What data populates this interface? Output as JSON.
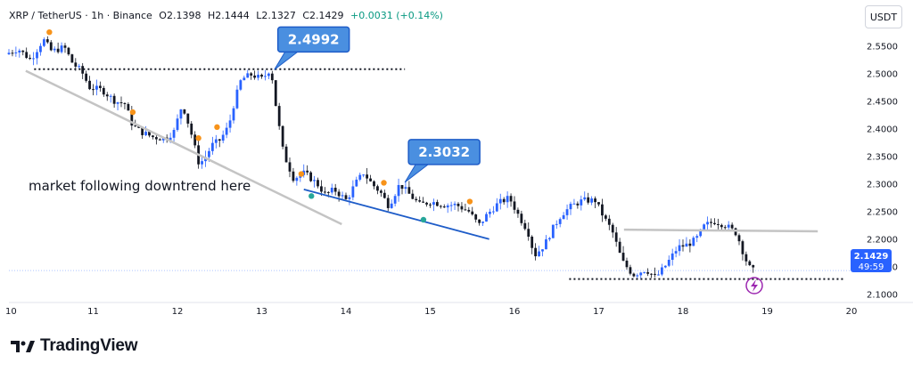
{
  "header": {
    "symbol": "XRP / TetherUS · 1h · Binance",
    "open": "O2.1398",
    "high": "H2.1444",
    "low": "L2.1327",
    "close": "C2.1429",
    "change": "+0.0031 (+0.14%)"
  },
  "currency_button": "USDT",
  "brand": {
    "name": "TradingView"
  },
  "colors": {
    "up": "#2962ff",
    "down": "#131722",
    "callout": "#4a8fe0",
    "support": "#1e5cc8",
    "marker_orange": "#f7931a",
    "marker_green": "#26a69a",
    "flash": "#9c27b0"
  },
  "chart_data": {
    "type": "candlestick",
    "y_ticks": [
      "2.5500",
      "2.5000",
      "2.4500",
      "2.4000",
      "2.3500",
      "2.3000",
      "2.2500",
      "2.2000",
      "2.1500",
      "2.1000"
    ],
    "ylim": [
      2.085,
      2.585
    ],
    "x_ticks": [
      "10",
      "11",
      "12",
      "13",
      "14",
      "15",
      "16",
      "17",
      "18",
      "19",
      "20"
    ],
    "xlim": [
      10,
      20
    ],
    "last_price": {
      "value": "2.1429",
      "countdown": "49:59"
    },
    "callouts": [
      {
        "label": "2.4992",
        "x": 13.15,
        "y": 2.507
      },
      {
        "label": "2.3032",
        "x": 14.7,
        "y": 2.303
      }
    ],
    "annotation": "market following downtrend here",
    "lines": [
      {
        "name": "resistance-dotted",
        "x": [
          10.3,
          14.7
        ],
        "y": [
          2.508,
          2.508
        ],
        "style": "dotted"
      },
      {
        "name": "support-dotted",
        "x": [
          16.65,
          19.9
        ],
        "y": [
          2.1275,
          2.1275
        ],
        "style": "dotted"
      },
      {
        "name": "downtrend-gray",
        "x": [
          10.2,
          13.95
        ],
        "y": [
          2.505,
          2.227
        ],
        "style": "gray"
      },
      {
        "name": "downtrend-blue",
        "x": [
          13.5,
          15.7
        ],
        "y": [
          2.29,
          2.2
        ],
        "style": "blue"
      },
      {
        "name": "horizontal-gray",
        "x": [
          17.3,
          19.6
        ],
        "y": [
          2.217,
          2.214
        ],
        "style": "gray"
      }
    ],
    "markers": [
      {
        "x": 10.48,
        "y": 2.575,
        "color": "orange"
      },
      {
        "x": 11.47,
        "y": 2.43,
        "color": "orange"
      },
      {
        "x": 12.25,
        "y": 2.383,
        "color": "orange"
      },
      {
        "x": 12.47,
        "y": 2.403,
        "color": "orange"
      },
      {
        "x": 13.47,
        "y": 2.318,
        "color": "orange"
      },
      {
        "x": 14.45,
        "y": 2.302,
        "color": "orange"
      },
      {
        "x": 15.47,
        "y": 2.268,
        "color": "orange"
      },
      {
        "x": 13.59,
        "y": 2.278,
        "color": "green"
      },
      {
        "x": 14.92,
        "y": 2.235,
        "color": "green"
      }
    ],
    "price_path": [
      [
        10.0,
        2.535
      ],
      [
        10.15,
        2.545
      ],
      [
        10.3,
        2.525
      ],
      [
        10.45,
        2.562
      ],
      [
        10.55,
        2.54
      ],
      [
        10.7,
        2.548
      ],
      [
        10.8,
        2.518
      ],
      [
        10.9,
        2.505
      ],
      [
        11.0,
        2.475
      ],
      [
        11.15,
        2.47
      ],
      [
        11.3,
        2.45
      ],
      [
        11.42,
        2.445
      ],
      [
        11.5,
        2.41
      ],
      [
        11.6,
        2.395
      ],
      [
        11.75,
        2.385
      ],
      [
        11.9,
        2.382
      ],
      [
        12.0,
        2.395
      ],
      [
        12.1,
        2.445
      ],
      [
        12.2,
        2.395
      ],
      [
        12.3,
        2.335
      ],
      [
        12.38,
        2.35
      ],
      [
        12.45,
        2.37
      ],
      [
        12.55,
        2.38
      ],
      [
        12.65,
        2.405
      ],
      [
        12.72,
        2.45
      ],
      [
        12.8,
        2.49
      ],
      [
        12.92,
        2.498
      ],
      [
        13.05,
        2.49
      ],
      [
        13.15,
        2.51
      ],
      [
        13.22,
        2.43
      ],
      [
        13.3,
        2.355
      ],
      [
        13.42,
        2.31
      ],
      [
        13.55,
        2.32
      ],
      [
        13.7,
        2.3
      ],
      [
        13.8,
        2.28
      ],
      [
        13.9,
        2.29
      ],
      [
        14.05,
        2.27
      ],
      [
        14.15,
        2.3
      ],
      [
        14.25,
        2.32
      ],
      [
        14.35,
        2.3
      ],
      [
        14.45,
        2.285
      ],
      [
        14.55,
        2.26
      ],
      [
        14.68,
        2.3
      ],
      [
        14.8,
        2.28
      ],
      [
        14.92,
        2.262
      ],
      [
        15.05,
        2.268
      ],
      [
        15.2,
        2.262
      ],
      [
        15.35,
        2.262
      ],
      [
        15.5,
        2.25
      ],
      [
        15.62,
        2.225
      ],
      [
        15.72,
        2.245
      ],
      [
        15.85,
        2.265
      ],
      [
        15.98,
        2.275
      ],
      [
        16.1,
        2.24
      ],
      [
        16.2,
        2.215
      ],
      [
        16.28,
        2.17
      ],
      [
        16.4,
        2.19
      ],
      [
        16.5,
        2.22
      ],
      [
        16.6,
        2.245
      ],
      [
        16.72,
        2.26
      ],
      [
        16.85,
        2.27
      ],
      [
        17.0,
        2.27
      ],
      [
        17.1,
        2.24
      ],
      [
        17.2,
        2.215
      ],
      [
        17.32,
        2.16
      ],
      [
        17.45,
        2.135
      ],
      [
        17.6,
        2.145
      ],
      [
        17.72,
        2.13
      ],
      [
        17.85,
        2.155
      ],
      [
        17.98,
        2.185
      ],
      [
        18.1,
        2.19
      ],
      [
        18.2,
        2.2
      ],
      [
        18.3,
        2.225
      ],
      [
        18.42,
        2.232
      ],
      [
        18.55,
        2.225
      ],
      [
        18.68,
        2.21
      ],
      [
        18.78,
        2.165
      ],
      [
        18.85,
        2.143
      ]
    ]
  }
}
